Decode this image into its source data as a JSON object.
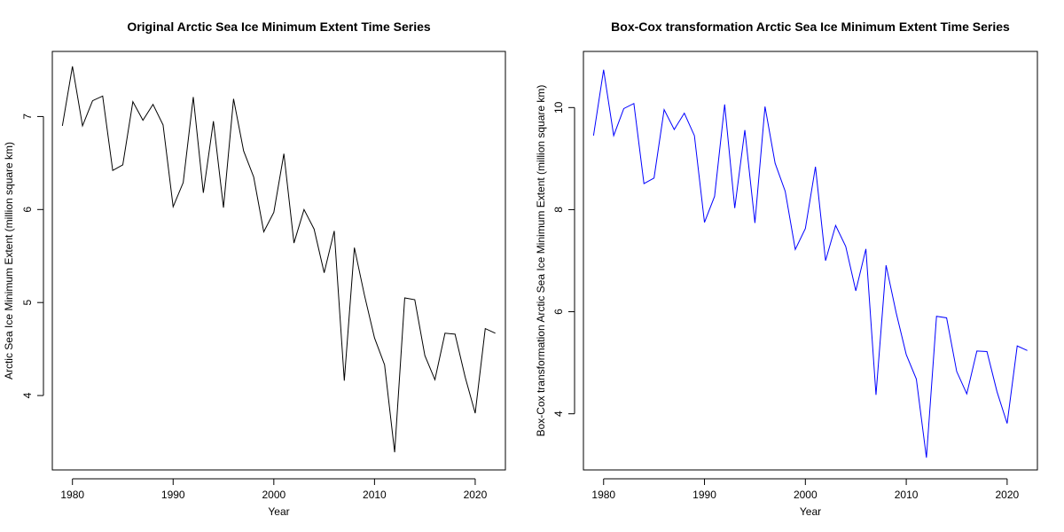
{
  "chart_data": [
    {
      "type": "line",
      "title": "Original Arctic Sea Ice Minimum Extent Time Series",
      "xlabel": "Year",
      "ylabel": "Arctic Sea Ice Minimum Extent (million square km)",
      "xlim": [
        1978,
        2023
      ],
      "ylim": [
        3.2,
        7.7
      ],
      "xticks": [
        1980,
        1990,
        2000,
        2010,
        2020
      ],
      "yticks": [
        4,
        5,
        6,
        7
      ],
      "grid": false,
      "color": "#000000",
      "x": [
        1979,
        1980,
        1981,
        1982,
        1983,
        1984,
        1985,
        1986,
        1987,
        1988,
        1989,
        1990,
        1991,
        1992,
        1993,
        1994,
        1995,
        1996,
        1997,
        1998,
        1999,
        2000,
        2001,
        2002,
        2003,
        2004,
        2005,
        2006,
        2007,
        2008,
        2009,
        2010,
        2011,
        2012,
        2013,
        2014,
        2015,
        2016,
        2017,
        2018,
        2019,
        2020,
        2021,
        2022
      ],
      "y": [
        6.9,
        7.54,
        6.9,
        7.17,
        7.22,
        6.42,
        6.48,
        7.16,
        6.96,
        7.13,
        6.91,
        6.03,
        6.29,
        7.21,
        6.18,
        6.95,
        6.02,
        7.19,
        6.63,
        6.35,
        5.76,
        5.97,
        6.6,
        5.64,
        6.0,
        5.79,
        5.32,
        5.77,
        4.16,
        5.59,
        5.08,
        4.62,
        4.33,
        3.39,
        5.05,
        5.03,
        4.43,
        4.17,
        4.67,
        4.66,
        4.2,
        3.81,
        4.72,
        4.67
      ]
    },
    {
      "type": "line",
      "title": "Box-Cox transformation Arctic Sea Ice Minimum Extent Time Series",
      "xlabel": "Year",
      "ylabel": "Box-Cox transformation Arctic Sea Ice Minimum Extent (million square km)",
      "xlim": [
        1978,
        2023
      ],
      "ylim": [
        2.9,
        11.1
      ],
      "xticks": [
        1980,
        1990,
        2000,
        2010,
        2020
      ],
      "yticks": [
        4,
        6,
        8,
        10
      ],
      "grid": false,
      "color": "#0000ff",
      "x": [
        1979,
        1980,
        1981,
        1982,
        1983,
        1984,
        1985,
        1986,
        1987,
        1988,
        1989,
        1990,
        1991,
        1992,
        1993,
        1994,
        1995,
        1996,
        1997,
        1998,
        1999,
        2000,
        2001,
        2002,
        2003,
        2004,
        2005,
        2006,
        2007,
        2008,
        2009,
        2010,
        2011,
        2012,
        2013,
        2014,
        2015,
        2016,
        2017,
        2018,
        2019,
        2020,
        2021,
        2022
      ],
      "y": [
        9.45,
        10.74,
        9.45,
        9.98,
        10.08,
        8.51,
        8.62,
        9.96,
        9.57,
        9.89,
        9.45,
        7.75,
        8.26,
        10.06,
        8.03,
        9.56,
        7.74,
        10.02,
        8.91,
        8.36,
        7.22,
        7.63,
        8.84,
        7.0,
        7.69,
        7.28,
        6.41,
        7.23,
        4.37,
        6.91,
        5.98,
        5.16,
        4.68,
        3.14,
        5.91,
        5.88,
        4.83,
        4.39,
        5.23,
        5.22,
        4.43,
        3.81,
        5.33,
        5.24
      ]
    }
  ]
}
